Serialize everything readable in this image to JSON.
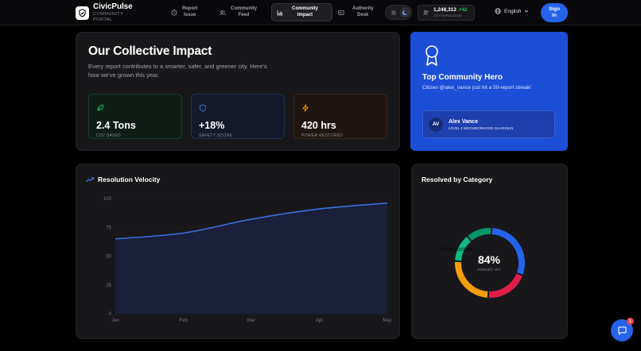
{
  "brand": {
    "title": "CivicPulse",
    "subtitle_1": "COMMUNITY",
    "subtitle_2": "PORTAL"
  },
  "nav": [
    {
      "line1": "Report",
      "line2": "Issue",
      "icon": "clock-icon"
    },
    {
      "line1": "Community",
      "line2": "Feed",
      "icon": "users-icon"
    },
    {
      "line1": "Community",
      "line2": "Impact",
      "icon": "bar-chart-icon"
    },
    {
      "line1": "Authority",
      "line2": "Desk",
      "icon": "id-card-icon"
    }
  ],
  "population": {
    "value": "1,248,312",
    "delta": "42",
    "label": "CITY POPULATION"
  },
  "language": {
    "selected": "English"
  },
  "signin": {
    "line1": "Sign",
    "line2": "In"
  },
  "impact": {
    "title": "Our Collective Impact",
    "description": "Every report contributes to a smarter, safer, and greener city. Here's how we've grown this year.",
    "stats": [
      {
        "value": "2.4 Tons",
        "label": "CO2 SAVED",
        "icon": "leaf-icon",
        "color": "#22c55e"
      },
      {
        "value": "+18%",
        "label": "SAFETY SCORE",
        "icon": "shield-icon",
        "color": "#3b82f6"
      },
      {
        "value": "420 hrs",
        "label": "POWER RESTORED",
        "icon": "lightning-icon",
        "color": "#f59e0b"
      }
    ]
  },
  "hero": {
    "title": "Top Community Hero",
    "message": "Citizen @alex_vance just hit a 50-report streak!",
    "user": {
      "initials": "AV",
      "name": "Alex Vance",
      "rank": "LEVEL 4 NEIGHBORHOOD GUARDIAN"
    }
  },
  "velocity": {
    "title": "Resolution Velocity"
  },
  "category": {
    "title": "Resolved by Category",
    "center_value": "84%",
    "center_label": "TARGET HIT",
    "tooltip": "Infrastructure"
  },
  "chat": {
    "badge": "1"
  },
  "colors": {
    "accent": "#2563eb",
    "line": "#3b6fe0",
    "positive": "#22c55e"
  },
  "chart_data": [
    {
      "type": "area",
      "title": "Resolution Velocity",
      "x": [
        "Jan",
        "Feb",
        "Mar",
        "Apr",
        "May"
      ],
      "series": [
        {
          "values": [
            65,
            70,
            82,
            91,
            96
          ]
        }
      ],
      "yticks": [
        0,
        25,
        50,
        75,
        100
      ],
      "ylim": [
        0,
        100
      ],
      "grid": true
    },
    {
      "type": "pie",
      "title": "Resolved by Category",
      "slices": [
        {
          "value": 30,
          "color": "#2563eb"
        },
        {
          "value": 20,
          "color": "#e11d48"
        },
        {
          "value": 25,
          "color": "#f59e0b"
        },
        {
          "value": 13,
          "color": "#10b981"
        },
        {
          "value": 12,
          "color": "#059669"
        }
      ]
    }
  ]
}
